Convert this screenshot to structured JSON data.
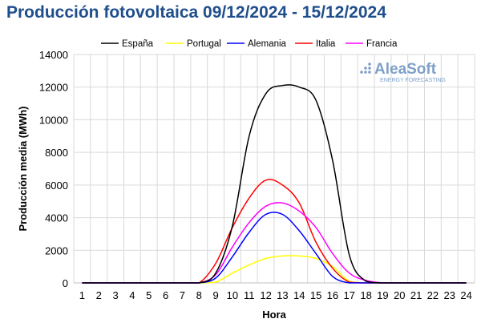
{
  "title": "Producción fotovoltaica 09/12/2024 - 15/12/2024",
  "logo": {
    "name": "AleaSoft",
    "tagline": "ENERGY FORECASTING"
  },
  "chart_data": {
    "type": "line",
    "title": "Producción fotovoltaica 09/12/2024 - 15/12/2024",
    "xlabel": "Hora",
    "ylabel": "Producción media (MWh)",
    "x": [
      1,
      2,
      3,
      4,
      5,
      6,
      7,
      8,
      9,
      10,
      11,
      12,
      13,
      14,
      15,
      16,
      17,
      18,
      19,
      20,
      21,
      22,
      23,
      24
    ],
    "ylim": [
      0,
      14000
    ],
    "yticks": [
      0,
      2000,
      4000,
      6000,
      8000,
      10000,
      12000,
      14000
    ],
    "grid": true,
    "legend_position": "top",
    "series": [
      {
        "name": "España",
        "color": "#000000",
        "values": [
          0,
          0,
          0,
          0,
          0,
          0,
          0,
          0,
          600,
          3500,
          9000,
          11600,
          12100,
          12000,
          11200,
          7500,
          1700,
          100,
          0,
          0,
          0,
          0,
          0,
          0
        ]
      },
      {
        "name": "Portugal",
        "color": "#ffff00",
        "values": [
          0,
          0,
          0,
          0,
          0,
          0,
          0,
          0,
          50,
          600,
          1100,
          1500,
          1650,
          1650,
          1500,
          1000,
          100,
          0,
          0,
          0,
          0,
          0,
          0,
          0
        ]
      },
      {
        "name": "Alemania",
        "color": "#0000ff",
        "values": [
          0,
          0,
          0,
          0,
          0,
          0,
          0,
          0,
          300,
          1600,
          3100,
          4200,
          4200,
          3200,
          1800,
          400,
          0,
          0,
          0,
          0,
          0,
          0,
          0,
          0
        ]
      },
      {
        "name": "Italia",
        "color": "#ff0000",
        "values": [
          0,
          0,
          0,
          0,
          0,
          0,
          0,
          0,
          1200,
          3400,
          5200,
          6300,
          6000,
          4900,
          2500,
          900,
          50,
          0,
          0,
          0,
          0,
          0,
          0,
          0
        ]
      },
      {
        "name": "Francia",
        "color": "#ff00ff",
        "values": [
          0,
          0,
          0,
          0,
          0,
          0,
          0,
          0,
          500,
          2200,
          3700,
          4700,
          4900,
          4400,
          3400,
          1800,
          600,
          150,
          0,
          0,
          0,
          0,
          0,
          0
        ]
      }
    ]
  }
}
